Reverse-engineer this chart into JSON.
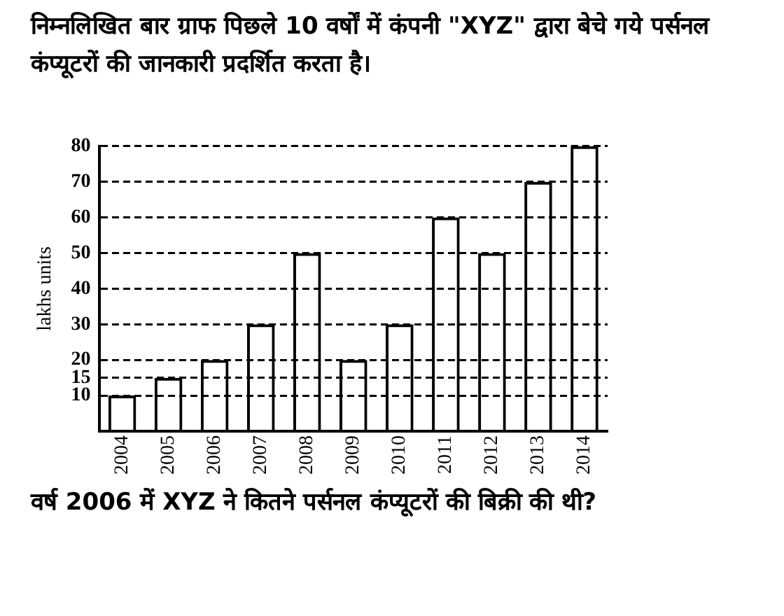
{
  "chart_data": {
    "type": "bar",
    "title": "निम्नलिखित बार ग्राफ पिछले 10 वर्षों में कंपनी \"XYZ\" द्वारा बेचे गये पर्सनल कंप्यूटरों की जानकारी प्रदर्शित करता है।",
    "ylabel": "lakhs units",
    "categories": [
      "2004",
      "2005",
      "2006",
      "2007",
      "2008",
      "2009",
      "2010",
      "2011",
      "2012",
      "2013",
      "2014"
    ],
    "values": [
      10,
      15,
      20,
      30,
      50,
      20,
      30,
      60,
      50,
      70,
      80
    ],
    "color": "#000000",
    "ylim": [
      0,
      80
    ],
    "yticks": [
      10,
      15,
      20,
      30,
      40,
      50,
      60,
      70,
      80
    ],
    "grid": "y",
    "annotations": [
      "वर्ष 2006 में XYZ ने कितने पर्सनल कंप्यूटरों की बिक्री की थी?"
    ]
  }
}
